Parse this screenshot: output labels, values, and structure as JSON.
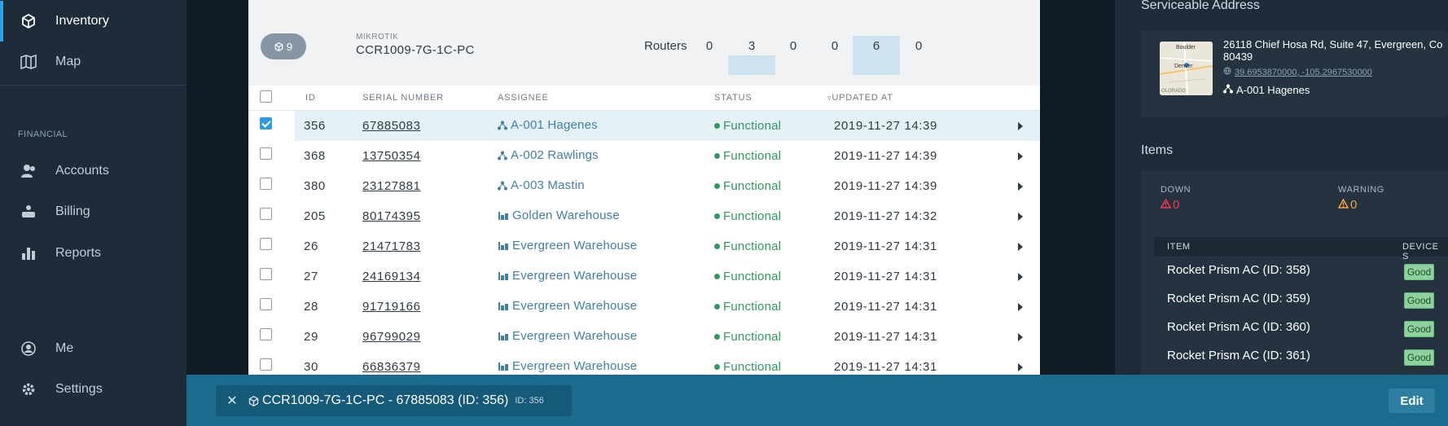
{
  "sidebar": {
    "items": [
      {
        "label": "Inventory",
        "icon": "cube-icon",
        "active": true
      },
      {
        "label": "Map",
        "icon": "map-icon"
      },
      {
        "label": "Accounts",
        "icon": "accounts-icon"
      },
      {
        "label": "Billing",
        "icon": "billing-icon"
      },
      {
        "label": "Reports",
        "icon": "bar-chart-icon"
      },
      {
        "label": "Me",
        "icon": "user-circle-icon"
      },
      {
        "label": "Settings",
        "icon": "gear-icon"
      }
    ],
    "section_financial": "FINANCIAL"
  },
  "group": {
    "count": "9",
    "vendor": "MIKROTIK",
    "model": "CCR1009-7G-1C-PC",
    "category": "Routers",
    "stats": [
      {
        "value": "0",
        "level": 0
      },
      {
        "value": "3",
        "level": 0.5
      },
      {
        "value": "0",
        "level": 0
      },
      {
        "value": "0",
        "level": 0
      },
      {
        "value": "6",
        "level": 1
      },
      {
        "value": "0",
        "level": 0
      }
    ]
  },
  "table": {
    "headers": {
      "id": "ID",
      "serial": "SERIAL NUMBER",
      "assignee": "ASSIGNEE",
      "status": "STATUS",
      "updated": "UPDATED AT"
    },
    "rows": [
      {
        "id": "356",
        "serial": "67885083",
        "assignee": "A-001 Hagenes",
        "type": "network",
        "status": "Functional",
        "updated": "2019-11-27 14:39",
        "selected": true
      },
      {
        "id": "368",
        "serial": "13750354",
        "assignee": "A-002 Rawlings",
        "type": "network",
        "status": "Functional",
        "updated": "2019-11-27 14:39"
      },
      {
        "id": "380",
        "serial": "23127881",
        "assignee": "A-003 Mastin",
        "type": "network",
        "status": "Functional",
        "updated": "2019-11-27 14:39"
      },
      {
        "id": "205",
        "serial": "80174395",
        "assignee": "Golden Warehouse",
        "type": "warehouse",
        "status": "Functional",
        "updated": "2019-11-27 14:32"
      },
      {
        "id": "26",
        "serial": "21471783",
        "assignee": "Evergreen Warehouse",
        "type": "warehouse",
        "status": "Functional",
        "updated": "2019-11-27 14:31"
      },
      {
        "id": "27",
        "serial": "24169134",
        "assignee": "Evergreen Warehouse",
        "type": "warehouse",
        "status": "Functional",
        "updated": "2019-11-27 14:31"
      },
      {
        "id": "28",
        "serial": "91719166",
        "assignee": "Evergreen Warehouse",
        "type": "warehouse",
        "status": "Functional",
        "updated": "2019-11-27 14:31"
      },
      {
        "id": "29",
        "serial": "96799029",
        "assignee": "Evergreen Warehouse",
        "type": "warehouse",
        "status": "Functional",
        "updated": "2019-11-27 14:31"
      },
      {
        "id": "30",
        "serial": "66836379",
        "assignee": "Evergreen Warehouse",
        "type": "warehouse",
        "status": "Functional",
        "updated": "2019-11-27 14:31"
      }
    ]
  },
  "details": {
    "address_title": "Serviceable Address",
    "address_line1": "26118 Chief Hosa Rd, Suite 47, Evergreen, Co",
    "address_line2": "80439",
    "coordinates": "39.6953870000, -105.2967530000",
    "assignee": "A-001 Hagenes",
    "map_labels": {
      "north": "Boulder",
      "city": "Denver",
      "state": "OLORADO"
    },
    "items_title": "Items",
    "down_label": "DOWN",
    "down_value": "0",
    "warning_label": "WARNING",
    "warning_value": "0",
    "item_header": "ITEM",
    "device_header": "DEVICE S",
    "items": [
      {
        "name": "Rocket Prism AC (ID: 358)",
        "status": "Good"
      },
      {
        "name": "Rocket Prism AC (ID: 359)",
        "status": "Good"
      },
      {
        "name": "Rocket Prism AC (ID: 360)",
        "status": "Good"
      },
      {
        "name": "Rocket Prism AC (ID: 361)",
        "status": "Good"
      }
    ]
  },
  "bottom": {
    "title": "CCR1009-7G-1C-PC - 67885083 (ID: 356)",
    "id_tag": "ID: 356",
    "edit_label": "Edit"
  },
  "colors": {
    "accent": "#2da3e6",
    "functional": "#2e9a5e",
    "bottom_bar": "#1b6b8e"
  }
}
